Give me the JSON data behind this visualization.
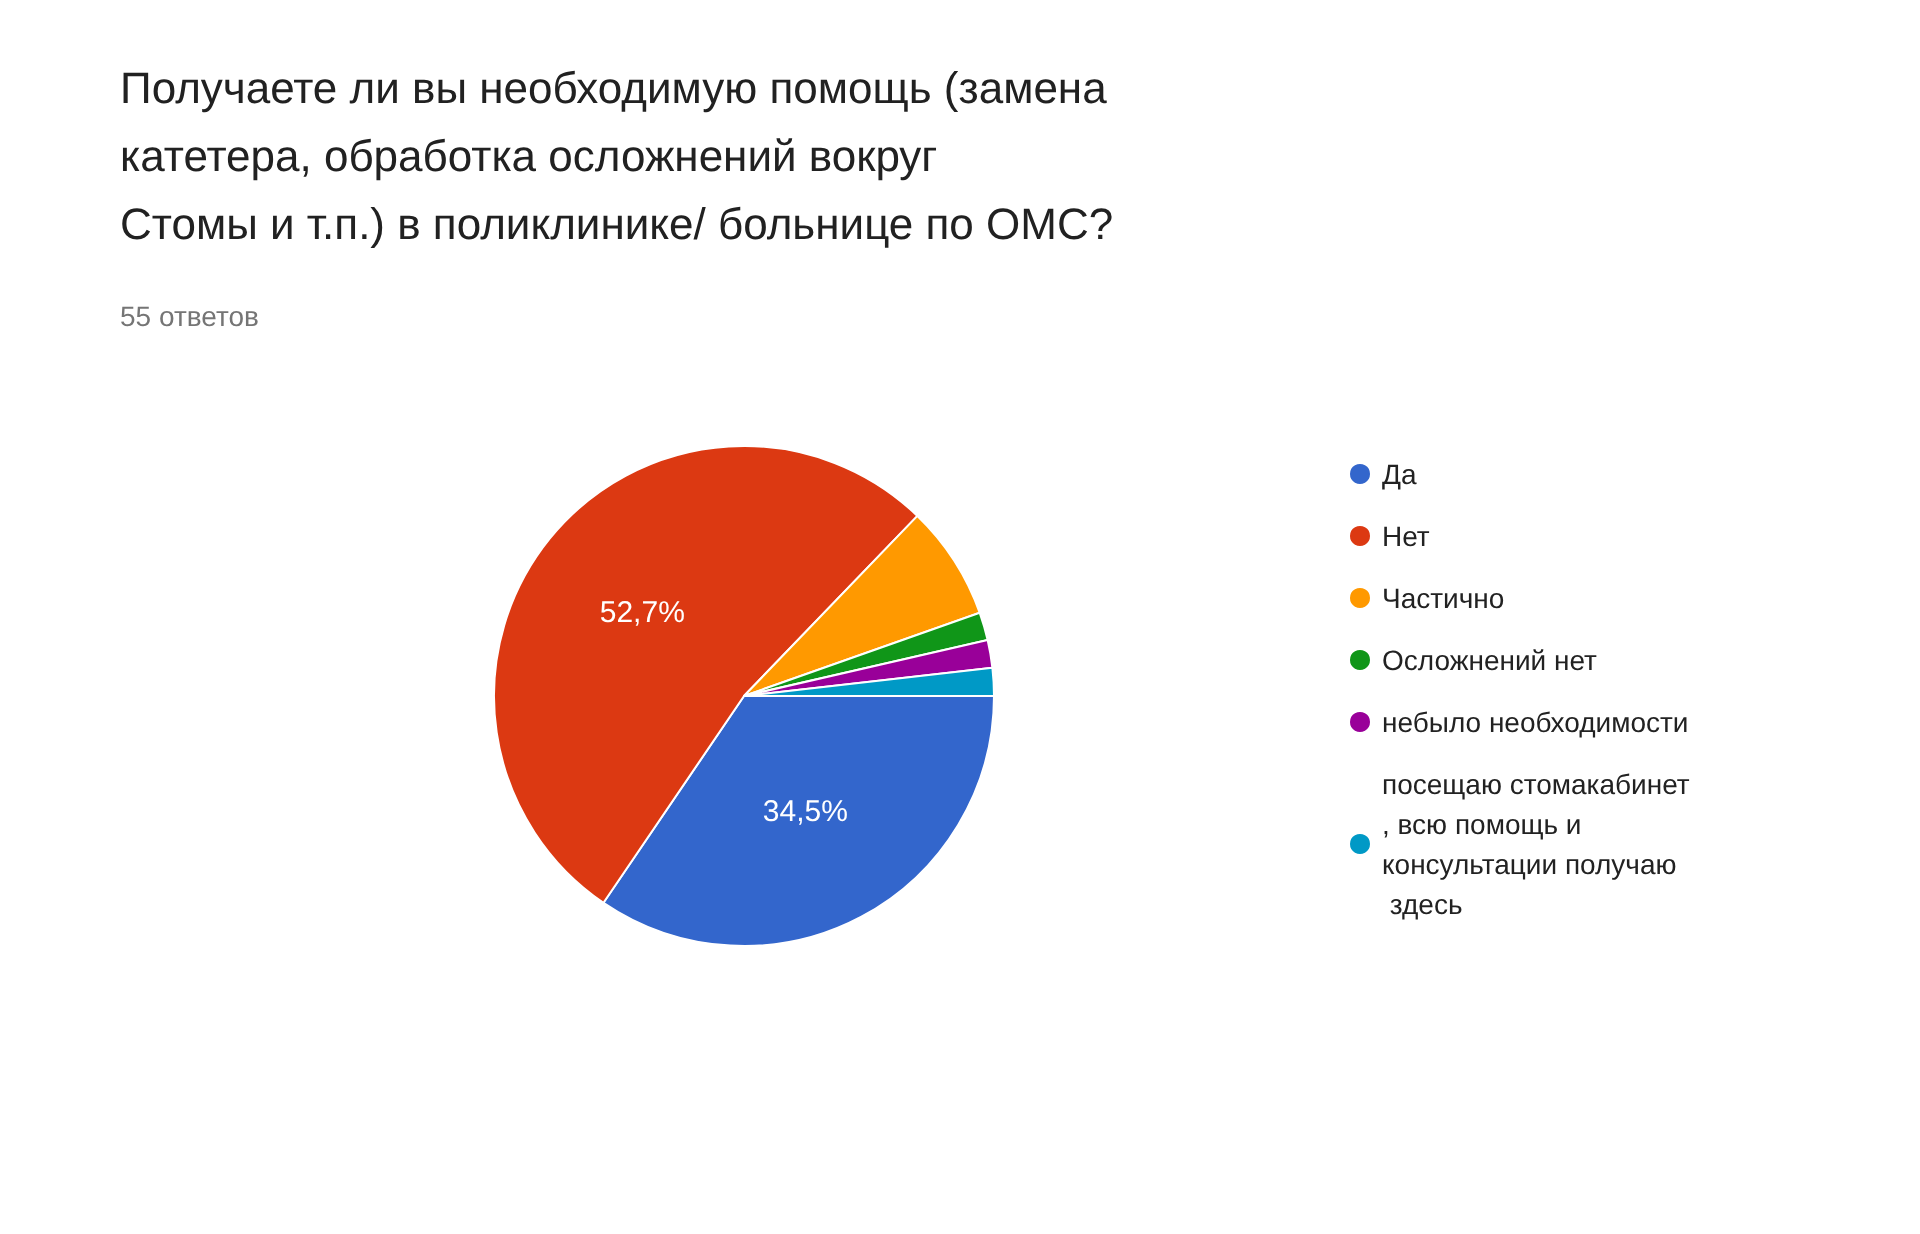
{
  "chart_data": {
    "type": "pie",
    "title": "Получаете ли вы необходимую помощь (замена катетера, обработка осложнений вокруг Стомы и т.п.) в поликлинике/ больнице по ОМС?",
    "subtitle": "55 ответов",
    "categories": [
      "Да",
      "Нет",
      "Частично",
      "Осложнений нет",
      "небыло необходимости",
      "посещаю стомакабинет, всю помощь и консультации получаю здесь"
    ],
    "values": [
      34.5,
      52.7,
      7.4,
      1.8,
      1.8,
      1.8
    ],
    "colors": [
      "#3366cc",
      "#dc3912",
      "#ff9900",
      "#109618",
      "#990099",
      "#0099c6"
    ],
    "value_labels": [
      "34,5%",
      "52,7%",
      null,
      null,
      null,
      null
    ],
    "legend": "right"
  }
}
